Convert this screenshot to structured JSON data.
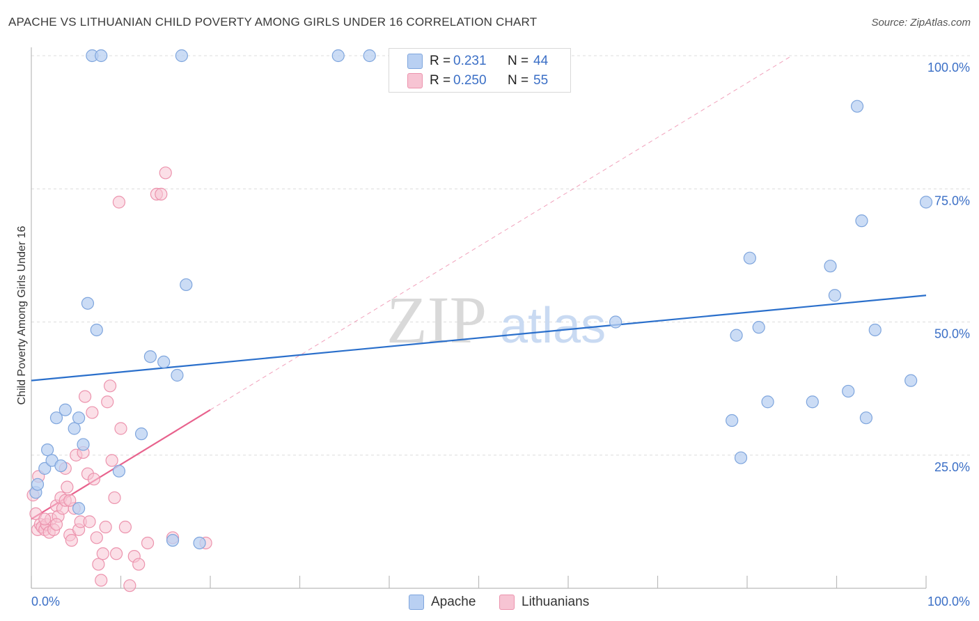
{
  "title": "APACHE VS LITHUANIAN CHILD POVERTY AMONG GIRLS UNDER 16 CORRELATION CHART",
  "source": "Source: ZipAtlas.com",
  "watermark": {
    "zip": "ZIP",
    "atlas": "atlas"
  },
  "legend_top": [
    {
      "r_label": "R =",
      "r_value": "0.231",
      "n_label": "N =",
      "n_value": "44"
    },
    {
      "r_label": "R =",
      "r_value": "0.250",
      "n_label": "N =",
      "n_value": "55"
    }
  ],
  "legend_bottom": [
    {
      "label": "Apache"
    },
    {
      "label": "Lithuanians"
    }
  ],
  "colors": {
    "apache_fill": "#b9d0f2",
    "apache_stroke": "#7ea5dd",
    "apache_line": "#2a6fcb",
    "lith_fill": "#f7c4d3",
    "lith_stroke": "#ec93ad",
    "lith_line": "#e8628d",
    "tick_label": "#3b6fc6",
    "grid": "#dcdcdc"
  },
  "chart_data": {
    "type": "scatter",
    "title": "APACHE VS LITHUANIAN CHILD POVERTY AMONG GIRLS UNDER 16 CORRELATION CHART",
    "xlabel": "",
    "ylabel": "Child Poverty Among Girls Under 16",
    "xlim": [
      0,
      100
    ],
    "ylim": [
      0,
      100
    ],
    "x_tick_labels": [
      "0.0%",
      "100.0%"
    ],
    "y_tick_labels": [
      "25.0%",
      "50.0%",
      "75.0%",
      "100.0%"
    ],
    "y_ticks": [
      25,
      50,
      75,
      100
    ],
    "grid": true,
    "series": [
      {
        "name": "Apache",
        "points": [
          [
            0.5,
            18
          ],
          [
            0.7,
            19.5
          ],
          [
            1.5,
            22.5
          ],
          [
            1.8,
            26
          ],
          [
            2.3,
            24
          ],
          [
            2.8,
            32
          ],
          [
            3.3,
            23
          ],
          [
            3.8,
            33.5
          ],
          [
            4.8,
            30
          ],
          [
            5.3,
            32
          ],
          [
            5.8,
            27
          ],
          [
            6.3,
            53.5
          ],
          [
            7.3,
            48.5
          ],
          [
            6.8,
            100
          ],
          [
            7.8,
            100
          ],
          [
            9.8,
            22
          ],
          [
            12.3,
            29
          ],
          [
            13.3,
            43.5
          ],
          [
            14.8,
            42.5
          ],
          [
            15.8,
            9
          ],
          [
            16.3,
            40
          ],
          [
            17.3,
            57
          ],
          [
            18.8,
            8.5
          ],
          [
            5.3,
            15
          ],
          [
            16.8,
            100
          ],
          [
            34.3,
            100
          ],
          [
            37.8,
            100
          ],
          [
            65.3,
            50
          ],
          [
            78.3,
            31.5
          ],
          [
            78.8,
            47.5
          ],
          [
            79.3,
            24.5
          ],
          [
            80.3,
            62
          ],
          [
            81.3,
            49
          ],
          [
            82.3,
            35
          ],
          [
            87.3,
            35
          ],
          [
            89.3,
            60.5
          ],
          [
            89.8,
            55
          ],
          [
            91.3,
            37
          ],
          [
            92.3,
            90.5
          ],
          [
            92.8,
            69
          ],
          [
            93.3,
            32
          ],
          [
            94.3,
            48.5
          ],
          [
            98.3,
            39
          ],
          [
            100,
            72.5
          ]
        ]
      },
      {
        "name": "Lithuanians",
        "points": [
          [
            0.2,
            17.5
          ],
          [
            0.5,
            14
          ],
          [
            0.7,
            11
          ],
          [
            1,
            12
          ],
          [
            1.2,
            11.5
          ],
          [
            1.5,
            11
          ],
          [
            1.7,
            12
          ],
          [
            2,
            10.5
          ],
          [
            2.2,
            13
          ],
          [
            2.5,
            11
          ],
          [
            2.8,
            15.5
          ],
          [
            3,
            13.5
          ],
          [
            3.3,
            17
          ],
          [
            3.5,
            15
          ],
          [
            3.8,
            16.5
          ],
          [
            3.8,
            22.5
          ],
          [
            4,
            19
          ],
          [
            4.3,
            10
          ],
          [
            4.5,
            9
          ],
          [
            4.8,
            15
          ],
          [
            5,
            25
          ],
          [
            5.3,
            11
          ],
          [
            5.5,
            12.5
          ],
          [
            5.8,
            25.5
          ],
          [
            6,
            36
          ],
          [
            6.3,
            21.5
          ],
          [
            6.5,
            12.5
          ],
          [
            6.8,
            33
          ],
          [
            7,
            20.5
          ],
          [
            7.3,
            9.5
          ],
          [
            7.5,
            4.5
          ],
          [
            7.8,
            1.5
          ],
          [
            8,
            6.5
          ],
          [
            8.3,
            11.5
          ],
          [
            8.5,
            35
          ],
          [
            8.8,
            38
          ],
          [
            9,
            24
          ],
          [
            9.3,
            17
          ],
          [
            9.5,
            6.5
          ],
          [
            9.8,
            72.5
          ],
          [
            10,
            30
          ],
          [
            10.5,
            11.5
          ],
          [
            11,
            0.5
          ],
          [
            11.5,
            6
          ],
          [
            12,
            4.5
          ],
          [
            13,
            8.5
          ],
          [
            14,
            74
          ],
          [
            14.5,
            74
          ],
          [
            15,
            78
          ],
          [
            15.8,
            9.5
          ],
          [
            19.5,
            8.5
          ],
          [
            0.8,
            21
          ],
          [
            1.5,
            13
          ],
          [
            2.8,
            12
          ],
          [
            4.3,
            16.5
          ]
        ]
      }
    ],
    "trend_lines": [
      {
        "series": "Apache",
        "x": [
          0,
          100
        ],
        "y": [
          39,
          55
        ]
      },
      {
        "series": "Lithuanians",
        "x": [
          0,
          20
        ],
        "y": [
          13,
          33.5
        ]
      },
      {
        "series": "Lithuanians",
        "style": "dashed-extension",
        "x": [
          20,
          85
        ],
        "y": [
          33.5,
          100
        ]
      }
    ]
  }
}
